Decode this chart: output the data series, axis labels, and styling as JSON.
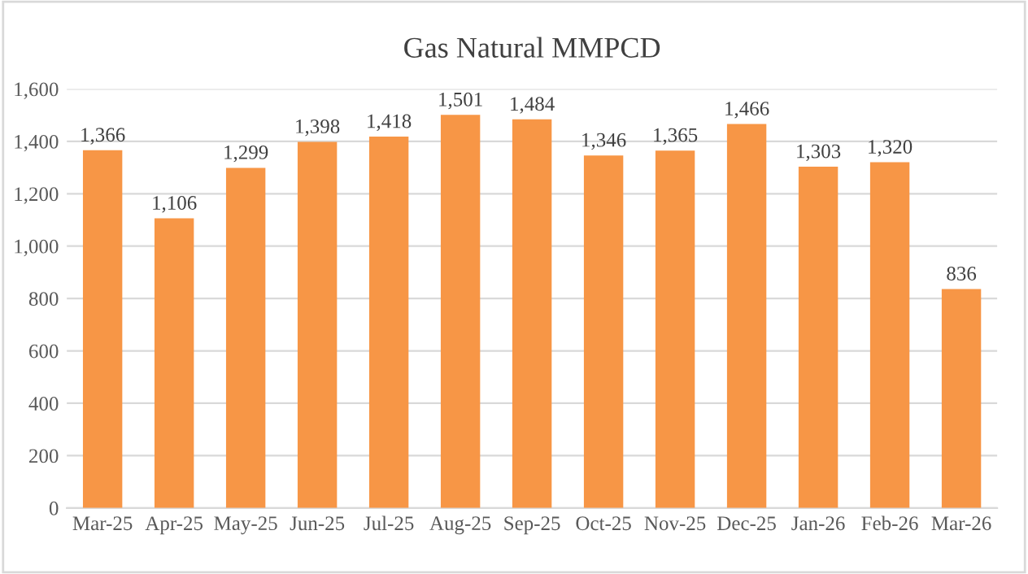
{
  "chart_data": {
    "type": "bar",
    "title": "Gas Natural MMPCD",
    "categories": [
      "Mar-25",
      "Apr-25",
      "May-25",
      "Jun-25",
      "Jul-25",
      "Aug-25",
      "Sep-25",
      "Oct-25",
      "Nov-25",
      "Dec-25",
      "Jan-26",
      "Feb-26",
      "Mar-26"
    ],
    "values": [
      1366,
      1106,
      1299,
      1398,
      1418,
      1501,
      1484,
      1346,
      1365,
      1466,
      1303,
      1320,
      836
    ],
    "value_labels": [
      "1,366",
      "1,106",
      "1,299",
      "1,398",
      "1,418",
      "1,501",
      "1,484",
      "1,346",
      "1,365",
      "1,466",
      "1,303",
      "1,320",
      "836"
    ],
    "color": "#f79646",
    "ylim": [
      0,
      1600
    ],
    "yticks": [
      0,
      200,
      400,
      600,
      800,
      {
        "value": 1000,
        "label": "1,000"
      },
      {
        "value": 1200,
        "label": "1,200"
      },
      {
        "value": 1400,
        "label": "1,400"
      },
      {
        "value": 1600,
        "label": "1,600"
      }
    ],
    "grid": "y"
  }
}
